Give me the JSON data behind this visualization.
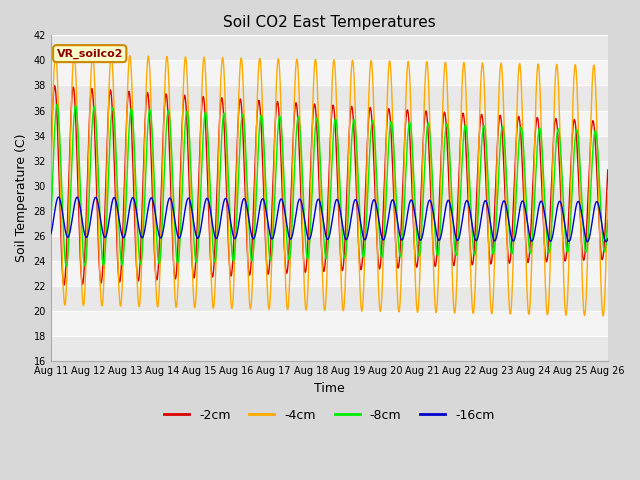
{
  "title": "Soil CO2 East Temperatures",
  "xlabel": "Time",
  "ylabel": "Soil Temperature (C)",
  "ylim": [
    16,
    42
  ],
  "xlim": [
    0,
    15
  ],
  "x_tick_labels": [
    "Aug 11",
    "Aug 12",
    "Aug 13",
    "Aug 14",
    "Aug 15",
    "Aug 16",
    "Aug 17",
    "Aug 18",
    "Aug 19",
    "Aug 20",
    "Aug 21",
    "Aug 22",
    "Aug 23",
    "Aug 24",
    "Aug 25",
    "Aug 26"
  ],
  "series": {
    "-2cm": {
      "color": "#dd0000",
      "amplitude": 8.0,
      "mean": 30.0,
      "phase": -0.3,
      "amp_decay": 0.025,
      "mean_decay": 0.025
    },
    "-4cm": {
      "color": "#ffaa00",
      "amplitude": 10.0,
      "mean": 30.5,
      "phase": 0.0,
      "amp_decay": 0.0,
      "mean_decay": 0.06
    },
    "-8cm": {
      "color": "#00ee00",
      "amplitude": 6.5,
      "mean": 30.0,
      "phase": 0.5,
      "amp_decay": 0.02,
      "mean_decay": 0.03
    },
    "-16cm": {
      "color": "#0000cc",
      "amplitude": 1.6,
      "mean": 27.5,
      "phase": 1.0,
      "amp_decay": 0.0,
      "mean_decay": 0.025
    }
  },
  "legend_label": "VR_soilco2",
  "bg_color": "#d8d8d8",
  "plot_bg_color": "#e8e8e8",
  "stripe_colors": [
    "#e8e8e8",
    "#f4f4f4"
  ],
  "grid_color": "#ffffff",
  "title_fontsize": 11,
  "tick_fontsize": 7,
  "label_fontsize": 9
}
